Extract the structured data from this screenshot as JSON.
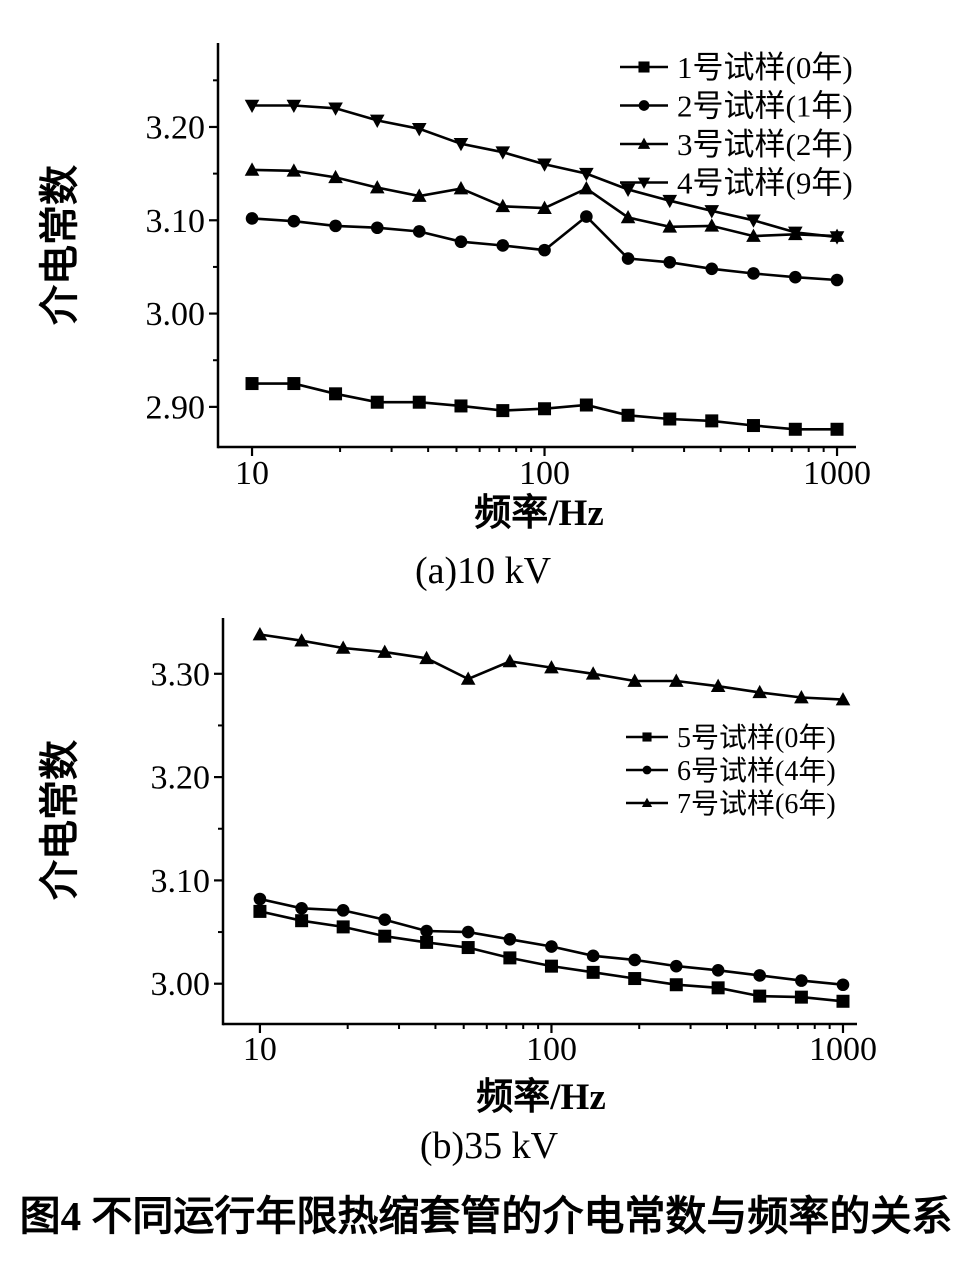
{
  "figure": {
    "title": "图4  不同运行年限热缩套管的介电常数与频率的关系",
    "colors": {
      "foreground": "#000000",
      "background": "#ffffff"
    }
  },
  "chart_data": [
    {
      "id": "a",
      "type": "line",
      "caption": "(a)10 kV",
      "xlabel": "频率/Hz",
      "ylabel": "介电常数",
      "x_scale": "log",
      "grid": false,
      "legend_position": "top-right",
      "x": [
        10,
        13.9,
        19.3,
        26.8,
        37.3,
        51.8,
        72,
        100,
        139,
        193,
        268,
        373,
        518,
        720,
        1000
      ],
      "x_major_ticks": [
        10,
        100,
        1000
      ],
      "x_tick_labels": [
        "10",
        "100",
        "1000"
      ],
      "y_major_ticks": [
        2.9,
        3.0,
        3.1,
        3.2
      ],
      "y_tick_labels": [
        "2.90",
        "3.00",
        "3.10",
        "3.20"
      ],
      "y_minor_ticks": [
        2.95,
        3.05,
        3.15,
        3.25
      ],
      "xlim": [
        7.65,
        1161
      ],
      "ylim": [
        2.857,
        3.29
      ],
      "series": [
        {
          "name": "1号试样(0年)",
          "marker": "square",
          "values": [
            2.925,
            2.925,
            2.914,
            2.905,
            2.905,
            2.901,
            2.896,
            2.898,
            2.902,
            2.891,
            2.887,
            2.885,
            2.88,
            2.876,
            2.876
          ]
        },
        {
          "name": "2号试样(1年)",
          "marker": "circle",
          "values": [
            3.102,
            3.099,
            3.094,
            3.092,
            3.088,
            3.077,
            3.073,
            3.068,
            3.104,
            3.059,
            3.055,
            3.048,
            3.043,
            3.039,
            3.036
          ]
        },
        {
          "name": "3号试样(2年)",
          "marker": "triangle-up",
          "values": [
            3.154,
            3.153,
            3.146,
            3.135,
            3.126,
            3.134,
            3.115,
            3.113,
            3.134,
            3.103,
            3.093,
            3.094,
            3.083,
            3.085,
            3.083
          ]
        },
        {
          "name": "4号试样(9年)",
          "marker": "triangle-down",
          "values": [
            3.223,
            3.223,
            3.22,
            3.207,
            3.198,
            3.182,
            3.173,
            3.16,
            3.15,
            3.133,
            3.121,
            3.11,
            3.1,
            3.087,
            3.082
          ]
        }
      ]
    },
    {
      "id": "b",
      "type": "line",
      "caption": "(b)35 kV",
      "xlabel": "频率/Hz",
      "ylabel": "介电常数",
      "x_scale": "log",
      "grid": false,
      "legend_position": "center-right",
      "x": [
        10,
        13.9,
        19.3,
        26.8,
        37.3,
        51.8,
        72,
        100,
        139,
        193,
        268,
        373,
        518,
        720,
        1000
      ],
      "x_major_ticks": [
        10,
        100,
        1000
      ],
      "x_tick_labels": [
        "10",
        "100",
        "1000"
      ],
      "y_major_ticks": [
        3.0,
        3.1,
        3.2,
        3.3
      ],
      "y_tick_labels": [
        "3.00",
        "3.10",
        "3.20",
        "3.30"
      ],
      "y_minor_ticks": [
        3.05,
        3.15,
        3.25
      ],
      "xlim": [
        7.47,
        1117
      ],
      "ylim": [
        2.961,
        3.354
      ],
      "series": [
        {
          "name": "5号试样(0年)",
          "marker": "square",
          "values": [
            3.07,
            3.061,
            3.055,
            3.046,
            3.04,
            3.035,
            3.025,
            3.017,
            3.011,
            3.005,
            2.999,
            2.996,
            2.988,
            2.987,
            2.983
          ]
        },
        {
          "name": "6号试样(4年)",
          "marker": "circle",
          "values": [
            3.082,
            3.073,
            3.071,
            3.062,
            3.051,
            3.05,
            3.043,
            3.036,
            3.027,
            3.023,
            3.017,
            3.013,
            3.008,
            3.003,
            2.999
          ]
        },
        {
          "name": "7号试样(6年)",
          "marker": "triangle-up",
          "values": [
            3.338,
            3.332,
            3.325,
            3.321,
            3.315,
            3.295,
            3.312,
            3.306,
            3.3,
            3.293,
            3.293,
            3.288,
            3.282,
            3.277,
            3.275
          ]
        }
      ]
    }
  ]
}
